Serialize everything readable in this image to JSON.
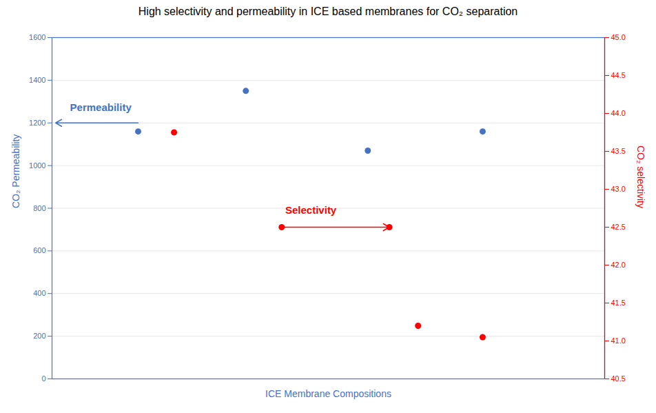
{
  "chart_data": {
    "type": "scatter",
    "title": "High selectivity and permeability in ICE based membranes for CO₂ separation",
    "xlabel": "ICE Membrane Compositions",
    "ylabel": "CO₂ Permeability",
    "y2label": "CO₂ selectivity",
    "xlim": [
      0.8,
      8.5
    ],
    "xticks": [],
    "ylim": [
      0,
      1600
    ],
    "yticks": [
      0,
      200,
      400,
      600,
      800,
      1000,
      1200,
      1400,
      1600
    ],
    "y2lim": [
      40.5,
      45.0
    ],
    "y2ticks": [
      40.5,
      {
        "value": 41.0,
        "label": "41.0"
      },
      41.5,
      {
        "value": 42.0,
        "label": "42.0"
      },
      42.5,
      {
        "value": 43.0,
        "label": "43.0"
      },
      43.5,
      {
        "value": 44.0,
        "label": "44.0"
      },
      44.5,
      {
        "value": 45.0,
        "label": "45.0"
      }
    ],
    "grid": true,
    "series": [
      {
        "color": "#4472C4",
        "axis": "y",
        "x": [
          2.0,
          3.5,
          5.2,
          6.8
        ],
        "values": [
          1160,
          1350,
          1070,
          1160
        ]
      },
      {
        "color": "#FF0000",
        "axis": "y2",
        "x": [
          2.5,
          4.0,
          5.5,
          5.9,
          6.8
        ],
        "values": [
          43.75,
          42.5,
          42.5,
          41.2,
          41.05
        ]
      }
    ],
    "annotations": [
      {
        "text": "Permeability",
        "x": 1.05,
        "y": 1255,
        "color": "#4472C4",
        "axis": "y",
        "arrow_from": [
          2.0,
          1200
        ],
        "arrow_to": [
          0.85,
          1200
        ]
      },
      {
        "text": "Selectivity",
        "x": 4.05,
        "y": 42.68,
        "color": "#FF0000",
        "axis": "y2",
        "arrow_from": [
          4.0,
          42.5
        ],
        "arrow_to": [
          5.5,
          42.5
        ]
      }
    ]
  }
}
